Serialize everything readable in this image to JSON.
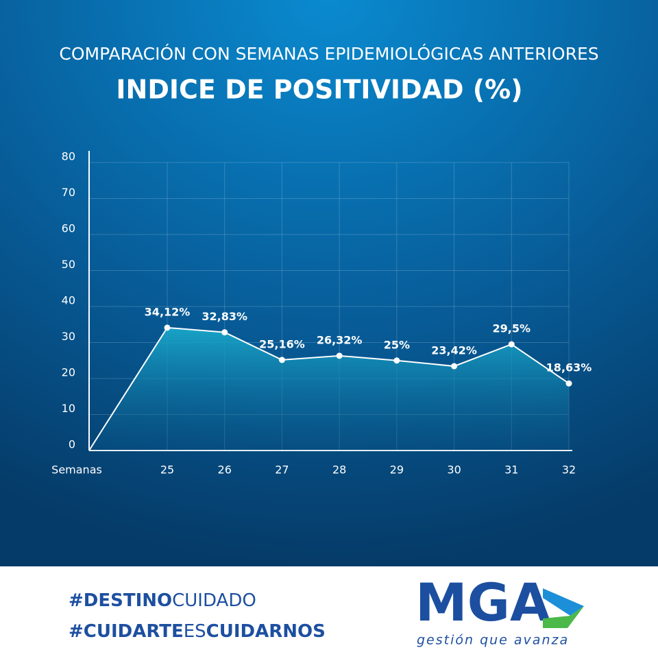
{
  "chart_data": {
    "type": "line",
    "subtitle": "COMPARACIÓN CON SEMANAS EPIDEMIOLÓGICAS ANTERIORES",
    "title": "INDICE DE POSITIVIDAD (%)",
    "x_label": "Semanas",
    "categories": [
      null,
      "25",
      "26",
      "27",
      "28",
      "29",
      "30",
      "31",
      "32"
    ],
    "values": [
      0,
      34.12,
      32.83,
      25.16,
      26.32,
      25,
      23.42,
      29.5,
      18.63
    ],
    "value_labels": [
      null,
      "34,12%",
      "32,83%",
      "25,16%",
      "26,32%",
      "25%",
      "23,42%",
      "29,5%",
      "18,63%"
    ],
    "color": "#ffffff",
    "ylim": [
      0,
      80
    ],
    "yticks": [
      0,
      10,
      20,
      30,
      40,
      50,
      60,
      70,
      80
    ],
    "grid": true
  },
  "footer": {
    "hashtags": [
      [
        "#DESTINO",
        "CUIDADO"
      ],
      [
        "#CUIDARTE",
        "ES",
        "CUIDARNOS"
      ]
    ],
    "logo": "MGA",
    "slogan": "gestión que avanza"
  }
}
